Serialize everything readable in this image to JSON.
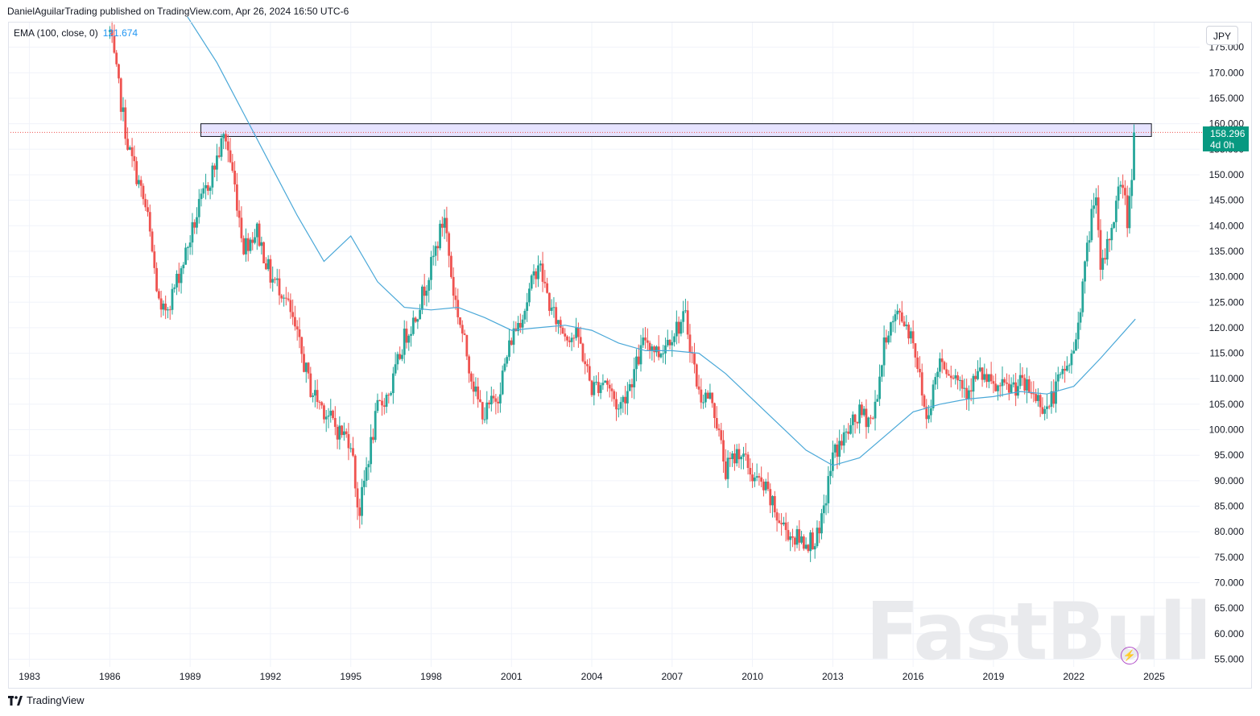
{
  "header": {
    "publisher_line": "DanielAguilarTrading published on TradingView.com, Apr 26, 2024 16:50 UTC-6"
  },
  "legend": {
    "label": "EMA (100, close, 0)",
    "value": "121.674",
    "color": "#2196f3"
  },
  "currency_button": "JPY",
  "price_tag": {
    "price": "158.296",
    "countdown": "4d 0h",
    "color": "#089981"
  },
  "footer": {
    "brand": "TradingView"
  },
  "watermark": "FastBull",
  "colors": {
    "up": "#26a69a",
    "down": "#ef5350",
    "ema": "#4aa8d8",
    "zone_fill": "#e6e3ff",
    "grid": "#f0f3fa"
  },
  "chart_data": {
    "type": "candlestick",
    "title": "",
    "xlabel": "",
    "ylabel": "",
    "xlim": [
      1982.2,
      2026.7
    ],
    "ylim": [
      53.5,
      180
    ],
    "x_ticks": [
      "1983",
      "1986",
      "1989",
      "1992",
      "1995",
      "1998",
      "2001",
      "2004",
      "2007",
      "2010",
      "2013",
      "2016",
      "2019",
      "2022",
      "2025"
    ],
    "y_ticks": [
      "55.000",
      "60.000",
      "65.000",
      "70.000",
      "75.000",
      "80.000",
      "85.000",
      "90.000",
      "95.000",
      "100.000",
      "105.000",
      "110.000",
      "115.000",
      "120.000",
      "125.000",
      "130.000",
      "135.000",
      "140.000",
      "145.000",
      "150.000",
      "155.000",
      "160.000",
      "165.000",
      "170.000",
      "175.000"
    ],
    "grid": true,
    "price_path": [
      [
        1986.0,
        178
      ],
      [
        1986.3,
        168
      ],
      [
        1986.7,
        155
      ],
      [
        1987.0,
        150
      ],
      [
        1987.4,
        142
      ],
      [
        1987.9,
        122
      ],
      [
        1988.3,
        126
      ],
      [
        1988.8,
        134
      ],
      [
        1989.3,
        143
      ],
      [
        1989.8,
        150
      ],
      [
        1990.3,
        158
      ],
      [
        1990.6,
        150
      ],
      [
        1991.0,
        136
      ],
      [
        1991.5,
        139
      ],
      [
        1992.0,
        130
      ],
      [
        1992.5,
        127
      ],
      [
        1993.0,
        118
      ],
      [
        1993.5,
        108
      ],
      [
        1994.0,
        104
      ],
      [
        1994.5,
        100
      ],
      [
        1995.0,
        98
      ],
      [
        1995.3,
        83
      ],
      [
        1995.6,
        93
      ],
      [
        1996.0,
        104
      ],
      [
        1996.5,
        108
      ],
      [
        1997.0,
        118
      ],
      [
        1997.4,
        122
      ],
      [
        1998.0,
        132
      ],
      [
        1998.5,
        142
      ],
      [
        1998.8,
        128
      ],
      [
        1999.2,
        118
      ],
      [
        1999.7,
        106
      ],
      [
        2000.0,
        103
      ],
      [
        2000.5,
        107
      ],
      [
        2001.0,
        118
      ],
      [
        2001.5,
        124
      ],
      [
        2002.0,
        133
      ],
      [
        2002.5,
        123
      ],
      [
        2003.0,
        119
      ],
      [
        2003.5,
        118
      ],
      [
        2004.0,
        108
      ],
      [
        2004.5,
        110
      ],
      [
        2005.0,
        104
      ],
      [
        2005.5,
        110
      ],
      [
        2006.0,
        118
      ],
      [
        2006.5,
        115
      ],
      [
        2007.0,
        119
      ],
      [
        2007.5,
        122
      ],
      [
        2008.0,
        107
      ],
      [
        2008.5,
        106
      ],
      [
        2009.0,
        92
      ],
      [
        2009.5,
        96
      ],
      [
        2010.0,
        91
      ],
      [
        2010.5,
        88
      ],
      [
        2011.0,
        82
      ],
      [
        2011.5,
        79
      ],
      [
        2012.0,
        78
      ],
      [
        2012.5,
        79
      ],
      [
        2013.0,
        95
      ],
      [
        2013.5,
        99
      ],
      [
        2014.0,
        103
      ],
      [
        2014.5,
        102
      ],
      [
        2015.0,
        119
      ],
      [
        2015.5,
        123
      ],
      [
        2016.0,
        118
      ],
      [
        2016.5,
        102
      ],
      [
        2017.0,
        114
      ],
      [
        2017.5,
        111
      ],
      [
        2018.0,
        108
      ],
      [
        2018.5,
        111
      ],
      [
        2019.0,
        108
      ],
      [
        2019.5,
        108
      ],
      [
        2020.0,
        109
      ],
      [
        2020.5,
        107
      ],
      [
        2021.0,
        104
      ],
      [
        2021.5,
        110
      ],
      [
        2022.0,
        115
      ],
      [
        2022.5,
        135
      ],
      [
        2022.8,
        148
      ],
      [
        2023.0,
        130
      ],
      [
        2023.5,
        142
      ],
      [
        2023.8,
        150
      ],
      [
        2024.0,
        141
      ],
      [
        2024.3,
        158.3
      ]
    ],
    "ema_100": [
      [
        1988.9,
        181
      ],
      [
        1990.0,
        172
      ],
      [
        1991.0,
        162
      ],
      [
        1992.0,
        152
      ],
      [
        1993.0,
        142
      ],
      [
        1994.0,
        133
      ],
      [
        1995.0,
        138
      ],
      [
        1996.0,
        129
      ],
      [
        1997.0,
        124
      ],
      [
        1998.0,
        123.5
      ],
      [
        1999.0,
        124
      ],
      [
        2000.0,
        122
      ],
      [
        2001.0,
        119.5
      ],
      [
        2002.0,
        120
      ],
      [
        2003.0,
        120.5
      ],
      [
        2004.0,
        119.5
      ],
      [
        2005.0,
        117
      ],
      [
        2006.0,
        115.5
      ],
      [
        2007.0,
        115.5
      ],
      [
        2008.0,
        115
      ],
      [
        2009.0,
        111
      ],
      [
        2010.0,
        106
      ],
      [
        2011.0,
        101
      ],
      [
        2012.0,
        96
      ],
      [
        2013.0,
        93
      ],
      [
        2014.0,
        94.5
      ],
      [
        2015.0,
        99
      ],
      [
        2016.0,
        103.5
      ],
      [
        2017.0,
        105
      ],
      [
        2018.0,
        106
      ],
      [
        2019.0,
        106.5
      ],
      [
        2020.0,
        107.5
      ],
      [
        2021.0,
        107
      ],
      [
        2022.0,
        108.5
      ],
      [
        2023.0,
        114
      ],
      [
        2024.3,
        121.7
      ]
    ],
    "resistance_zone": {
      "x_start": 1989.4,
      "x_end": 2024.9,
      "y_low": 157.5,
      "y_high": 160
    },
    "last_price": 158.296
  }
}
